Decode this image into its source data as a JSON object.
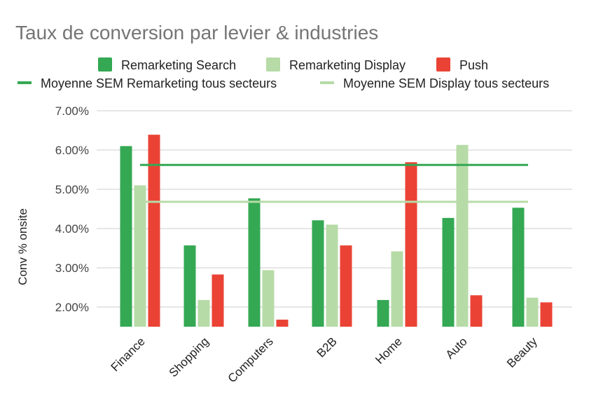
{
  "chart_data": {
    "type": "bar",
    "title": "Taux de conversion par levier & industries",
    "ylabel": "Conv % onsite",
    "xlabel": "",
    "ylim": [
      1.5,
      7.0
    ],
    "yticks": [
      2.0,
      3.0,
      4.0,
      5.0,
      6.0,
      7.0
    ],
    "ytick_labels": [
      "2.00%",
      "3.00%",
      "4.00%",
      "5.00%",
      "6.00%",
      "7.00%"
    ],
    "grid": true,
    "legend_position": "top",
    "categories": [
      "Finance",
      "Shopping",
      "Computers",
      "B2B",
      "Home",
      "Auto",
      "Beauty"
    ],
    "series": [
      {
        "name": "Remarketing Search",
        "color": "#34a853",
        "values": [
          6.1,
          3.57,
          4.77,
          4.21,
          2.18,
          4.27,
          4.53
        ]
      },
      {
        "name": "Remarketing Display",
        "color": "#b7dba7",
        "values": [
          5.1,
          2.18,
          2.94,
          4.1,
          3.42,
          6.13,
          2.24
        ]
      },
      {
        "name": "Push",
        "color": "#ea4335",
        "values": [
          6.39,
          2.83,
          1.68,
          3.57,
          5.69,
          2.3,
          2.12
        ]
      }
    ],
    "reference_lines": [
      {
        "name": "Moyenne SEM Remarketing tous secteurs",
        "color": "#34a853",
        "value": 5.62
      },
      {
        "name": "Moyenne SEM Display tous secteurs",
        "color": "#b7dba7",
        "value": 4.68
      }
    ]
  }
}
